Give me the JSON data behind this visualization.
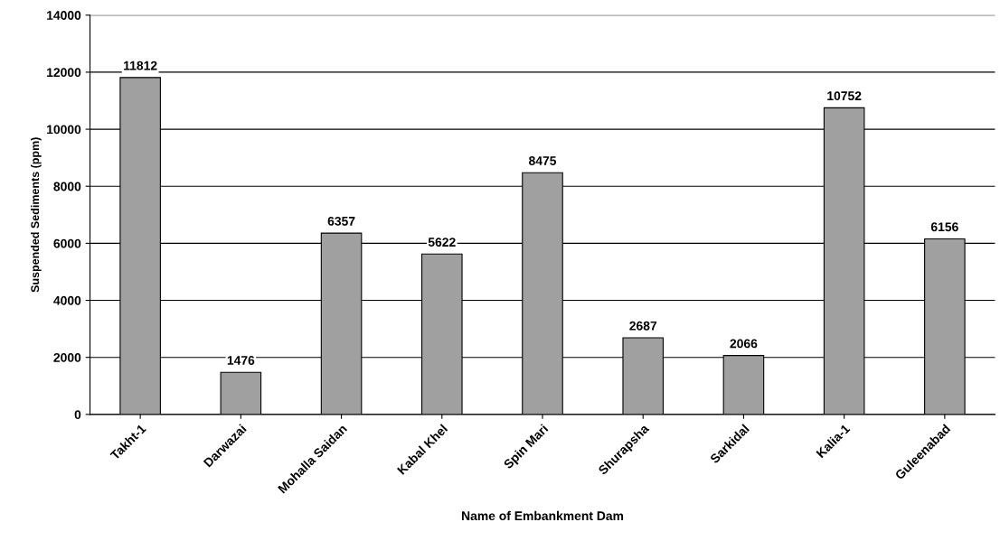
{
  "chart_data": {
    "type": "bar",
    "xlabel": "Name of Embankment Dam",
    "ylabel": "Suspended Sediments (ppm)",
    "categories": [
      "Takht-1",
      "Darwazai",
      "Mohalla Saidan",
      "Kabal Khel",
      "Spin Mari",
      "Shurapsha",
      "Sarkidal",
      "Kalia-1",
      "Guleenabad"
    ],
    "values": [
      11812,
      1476,
      6357,
      5622,
      8475,
      2687,
      2066,
      10752,
      6156
    ],
    "color": "#a0a0a0",
    "ylim": [
      0,
      14000
    ],
    "yticks": [
      0,
      2000,
      4000,
      6000,
      8000,
      10000,
      12000,
      14000
    ],
    "grid": "y",
    "data_labels": true
  }
}
